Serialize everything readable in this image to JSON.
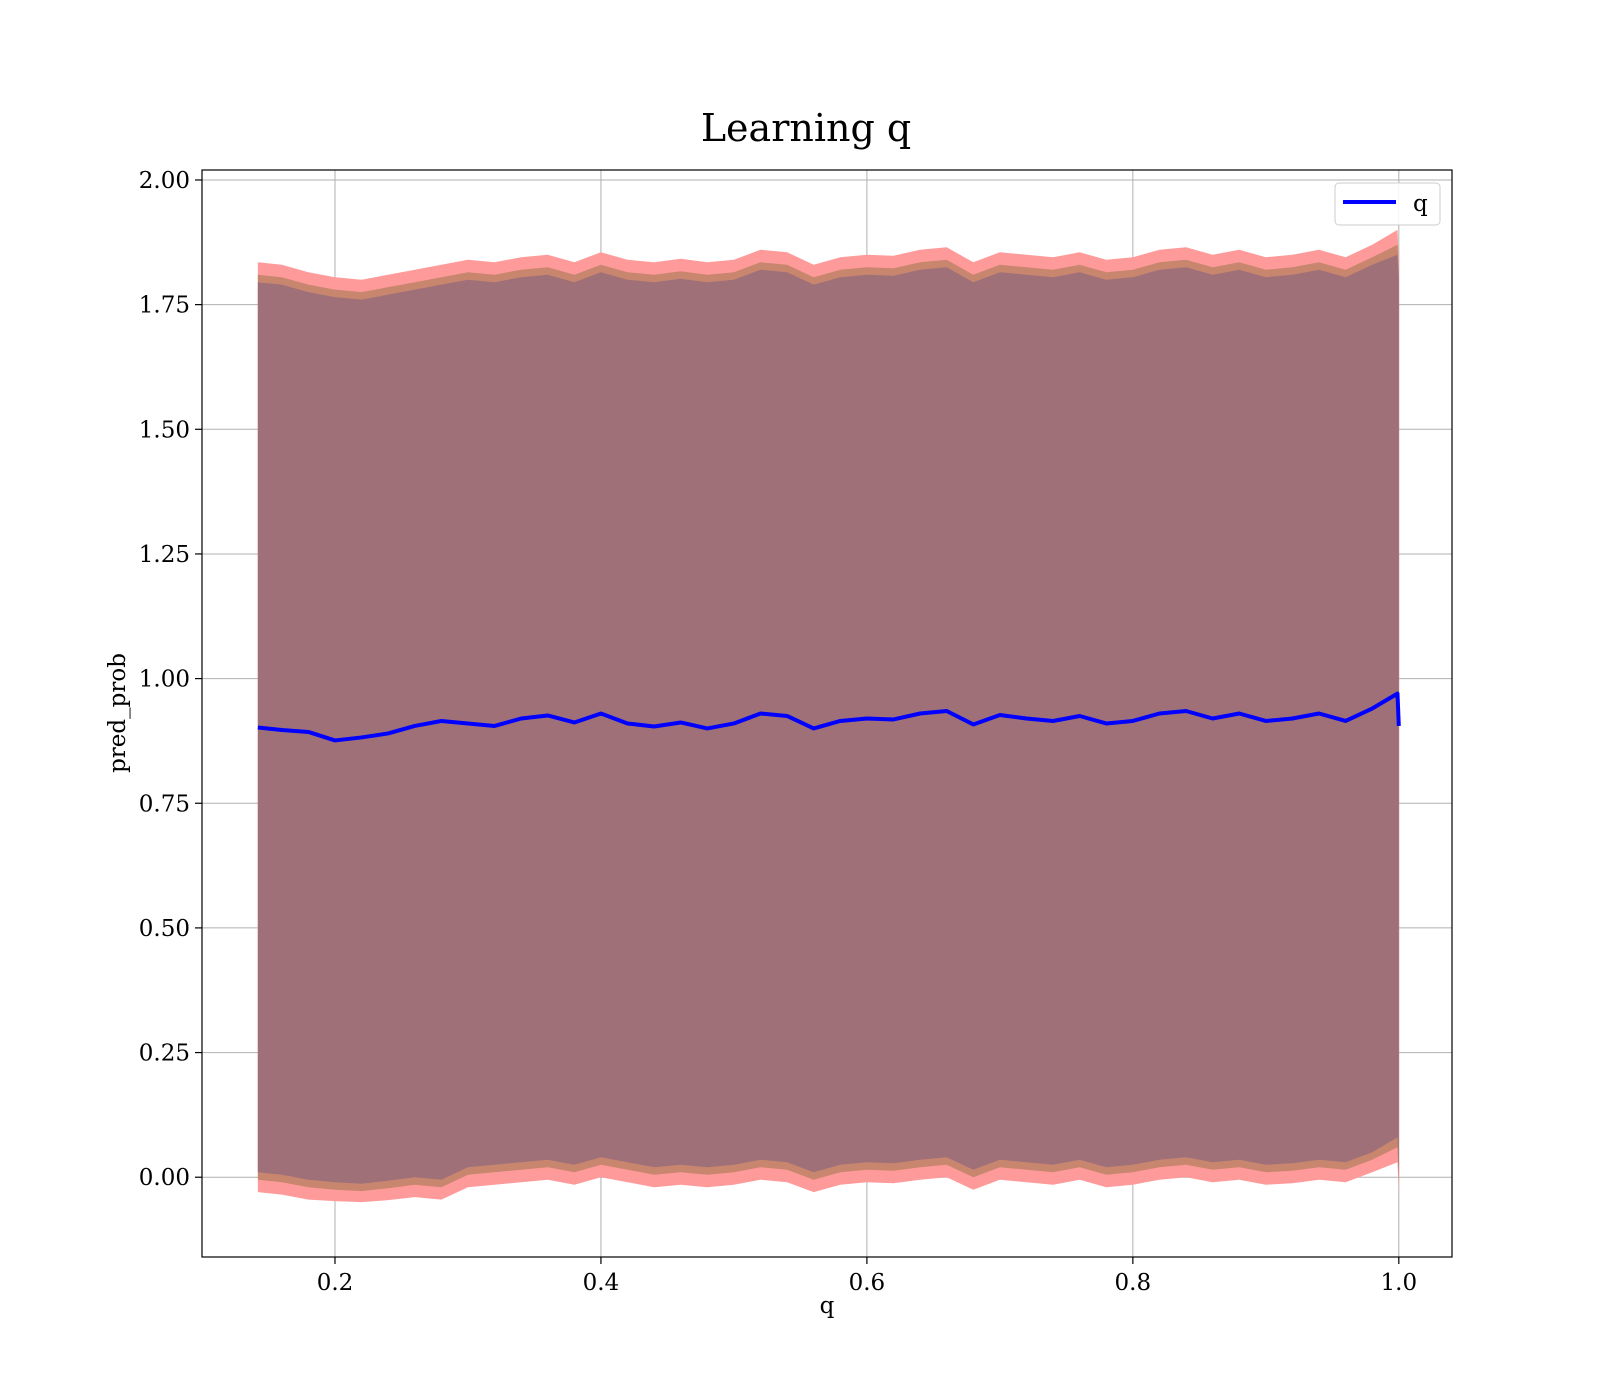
{
  "chart_data": {
    "type": "line",
    "title": "Learning q",
    "xlabel": "q",
    "ylabel": "pred_prob",
    "xlim": [
      0.1,
      1.04
    ],
    "ylim": [
      -0.16,
      2.02
    ],
    "xticks": [
      0.2,
      0.4,
      0.6,
      0.8,
      1.0
    ],
    "xtick_labels": [
      "0.2",
      "0.4",
      "0.6",
      "0.8",
      "1.0"
    ],
    "yticks": [
      0.0,
      0.25,
      0.5,
      0.75,
      1.0,
      1.25,
      1.5,
      1.75,
      2.0
    ],
    "ytick_labels": [
      "0.00",
      "0.25",
      "0.50",
      "0.75",
      "1.00",
      "1.25",
      "1.50",
      "1.75",
      "2.00"
    ],
    "grid": true,
    "legend_position": "top-right",
    "colors": {
      "line": "#0000ff",
      "band_outer": "#ff9a9a",
      "band_middle": "#c9866f",
      "band_inner": "#a07079",
      "grid": "#b0b0b0"
    },
    "x": [
      0.142,
      0.16,
      0.18,
      0.2,
      0.22,
      0.24,
      0.26,
      0.28,
      0.3,
      0.32,
      0.34,
      0.36,
      0.38,
      0.4,
      0.42,
      0.44,
      0.46,
      0.48,
      0.5,
      0.52,
      0.54,
      0.56,
      0.58,
      0.6,
      0.62,
      0.64,
      0.66,
      0.68,
      0.7,
      0.72,
      0.74,
      0.76,
      0.78,
      0.8,
      0.82,
      0.84,
      0.86,
      0.88,
      0.9,
      0.92,
      0.94,
      0.96,
      0.98,
      0.999,
      1.0
    ],
    "series": [
      {
        "name": "q",
        "values": [
          0.902,
          0.897,
          0.893,
          0.876,
          0.882,
          0.89,
          0.905,
          0.915,
          0.91,
          0.905,
          0.92,
          0.926,
          0.912,
          0.93,
          0.91,
          0.904,
          0.912,
          0.9,
          0.91,
          0.93,
          0.925,
          0.9,
          0.915,
          0.92,
          0.918,
          0.93,
          0.935,
          0.908,
          0.927,
          0.92,
          0.915,
          0.925,
          0.91,
          0.915,
          0.93,
          0.935,
          0.92,
          0.93,
          0.915,
          0.92,
          0.93,
          0.915,
          0.94,
          0.97,
          0.905
        ]
      }
    ],
    "bands": [
      {
        "name": "outer",
        "lower": [
          -0.03,
          -0.035,
          -0.045,
          -0.048,
          -0.05,
          -0.046,
          -0.04,
          -0.045,
          -0.02,
          -0.015,
          -0.01,
          -0.005,
          -0.015,
          0.0,
          -0.01,
          -0.02,
          -0.015,
          -0.02,
          -0.015,
          -0.005,
          -0.01,
          -0.03,
          -0.015,
          -0.01,
          -0.012,
          -0.005,
          0.0,
          -0.025,
          -0.005,
          -0.01,
          -0.015,
          -0.005,
          -0.02,
          -0.015,
          -0.005,
          0.0,
          -0.01,
          -0.005,
          -0.015,
          -0.012,
          -0.005,
          -0.01,
          0.01,
          0.03,
          -0.03
        ],
        "upper": [
          1.835,
          1.83,
          1.815,
          1.805,
          1.8,
          1.81,
          1.82,
          1.83,
          1.84,
          1.835,
          1.845,
          1.85,
          1.835,
          1.855,
          1.84,
          1.835,
          1.842,
          1.835,
          1.84,
          1.86,
          1.855,
          1.83,
          1.845,
          1.85,
          1.848,
          1.86,
          1.865,
          1.835,
          1.855,
          1.85,
          1.845,
          1.855,
          1.84,
          1.845,
          1.86,
          1.865,
          1.85,
          1.86,
          1.845,
          1.85,
          1.86,
          1.845,
          1.87,
          1.9,
          1.84
        ]
      },
      {
        "name": "middle",
        "lower": [
          -0.005,
          -0.01,
          -0.02,
          -0.025,
          -0.028,
          -0.022,
          -0.015,
          -0.02,
          0.005,
          0.01,
          0.015,
          0.02,
          0.01,
          0.025,
          0.015,
          0.005,
          0.01,
          0.005,
          0.01,
          0.02,
          0.015,
          -0.005,
          0.01,
          0.015,
          0.013,
          0.02,
          0.025,
          0.0,
          0.02,
          0.015,
          0.01,
          0.02,
          0.005,
          0.01,
          0.02,
          0.025,
          0.015,
          0.02,
          0.01,
          0.013,
          0.02,
          0.015,
          0.035,
          0.06,
          -0.01
        ],
        "upper": [
          1.81,
          1.805,
          1.79,
          1.78,
          1.775,
          1.785,
          1.795,
          1.805,
          1.815,
          1.81,
          1.82,
          1.825,
          1.81,
          1.83,
          1.815,
          1.81,
          1.817,
          1.81,
          1.815,
          1.835,
          1.83,
          1.805,
          1.82,
          1.825,
          1.823,
          1.835,
          1.84,
          1.81,
          1.83,
          1.825,
          1.82,
          1.83,
          1.815,
          1.82,
          1.835,
          1.84,
          1.825,
          1.835,
          1.82,
          1.825,
          1.835,
          1.82,
          1.845,
          1.87,
          1.82
        ]
      },
      {
        "name": "inner",
        "lower": [
          0.01,
          0.005,
          -0.005,
          -0.01,
          -0.013,
          -0.007,
          0.0,
          -0.005,
          0.02,
          0.025,
          0.03,
          0.035,
          0.025,
          0.04,
          0.03,
          0.02,
          0.025,
          0.02,
          0.025,
          0.035,
          0.03,
          0.01,
          0.025,
          0.03,
          0.028,
          0.035,
          0.04,
          0.015,
          0.035,
          0.03,
          0.025,
          0.035,
          0.02,
          0.025,
          0.035,
          0.04,
          0.03,
          0.035,
          0.025,
          0.028,
          0.035,
          0.03,
          0.05,
          0.08,
          0.0
        ],
        "upper": [
          1.795,
          1.79,
          1.775,
          1.765,
          1.76,
          1.77,
          1.78,
          1.79,
          1.8,
          1.795,
          1.805,
          1.81,
          1.795,
          1.815,
          1.8,
          1.795,
          1.802,
          1.795,
          1.8,
          1.82,
          1.815,
          1.79,
          1.805,
          1.81,
          1.808,
          1.82,
          1.825,
          1.795,
          1.815,
          1.81,
          1.805,
          1.815,
          1.8,
          1.805,
          1.82,
          1.825,
          1.81,
          1.82,
          1.805,
          1.81,
          1.82,
          1.805,
          1.83,
          1.85,
          1.8
        ]
      }
    ]
  }
}
